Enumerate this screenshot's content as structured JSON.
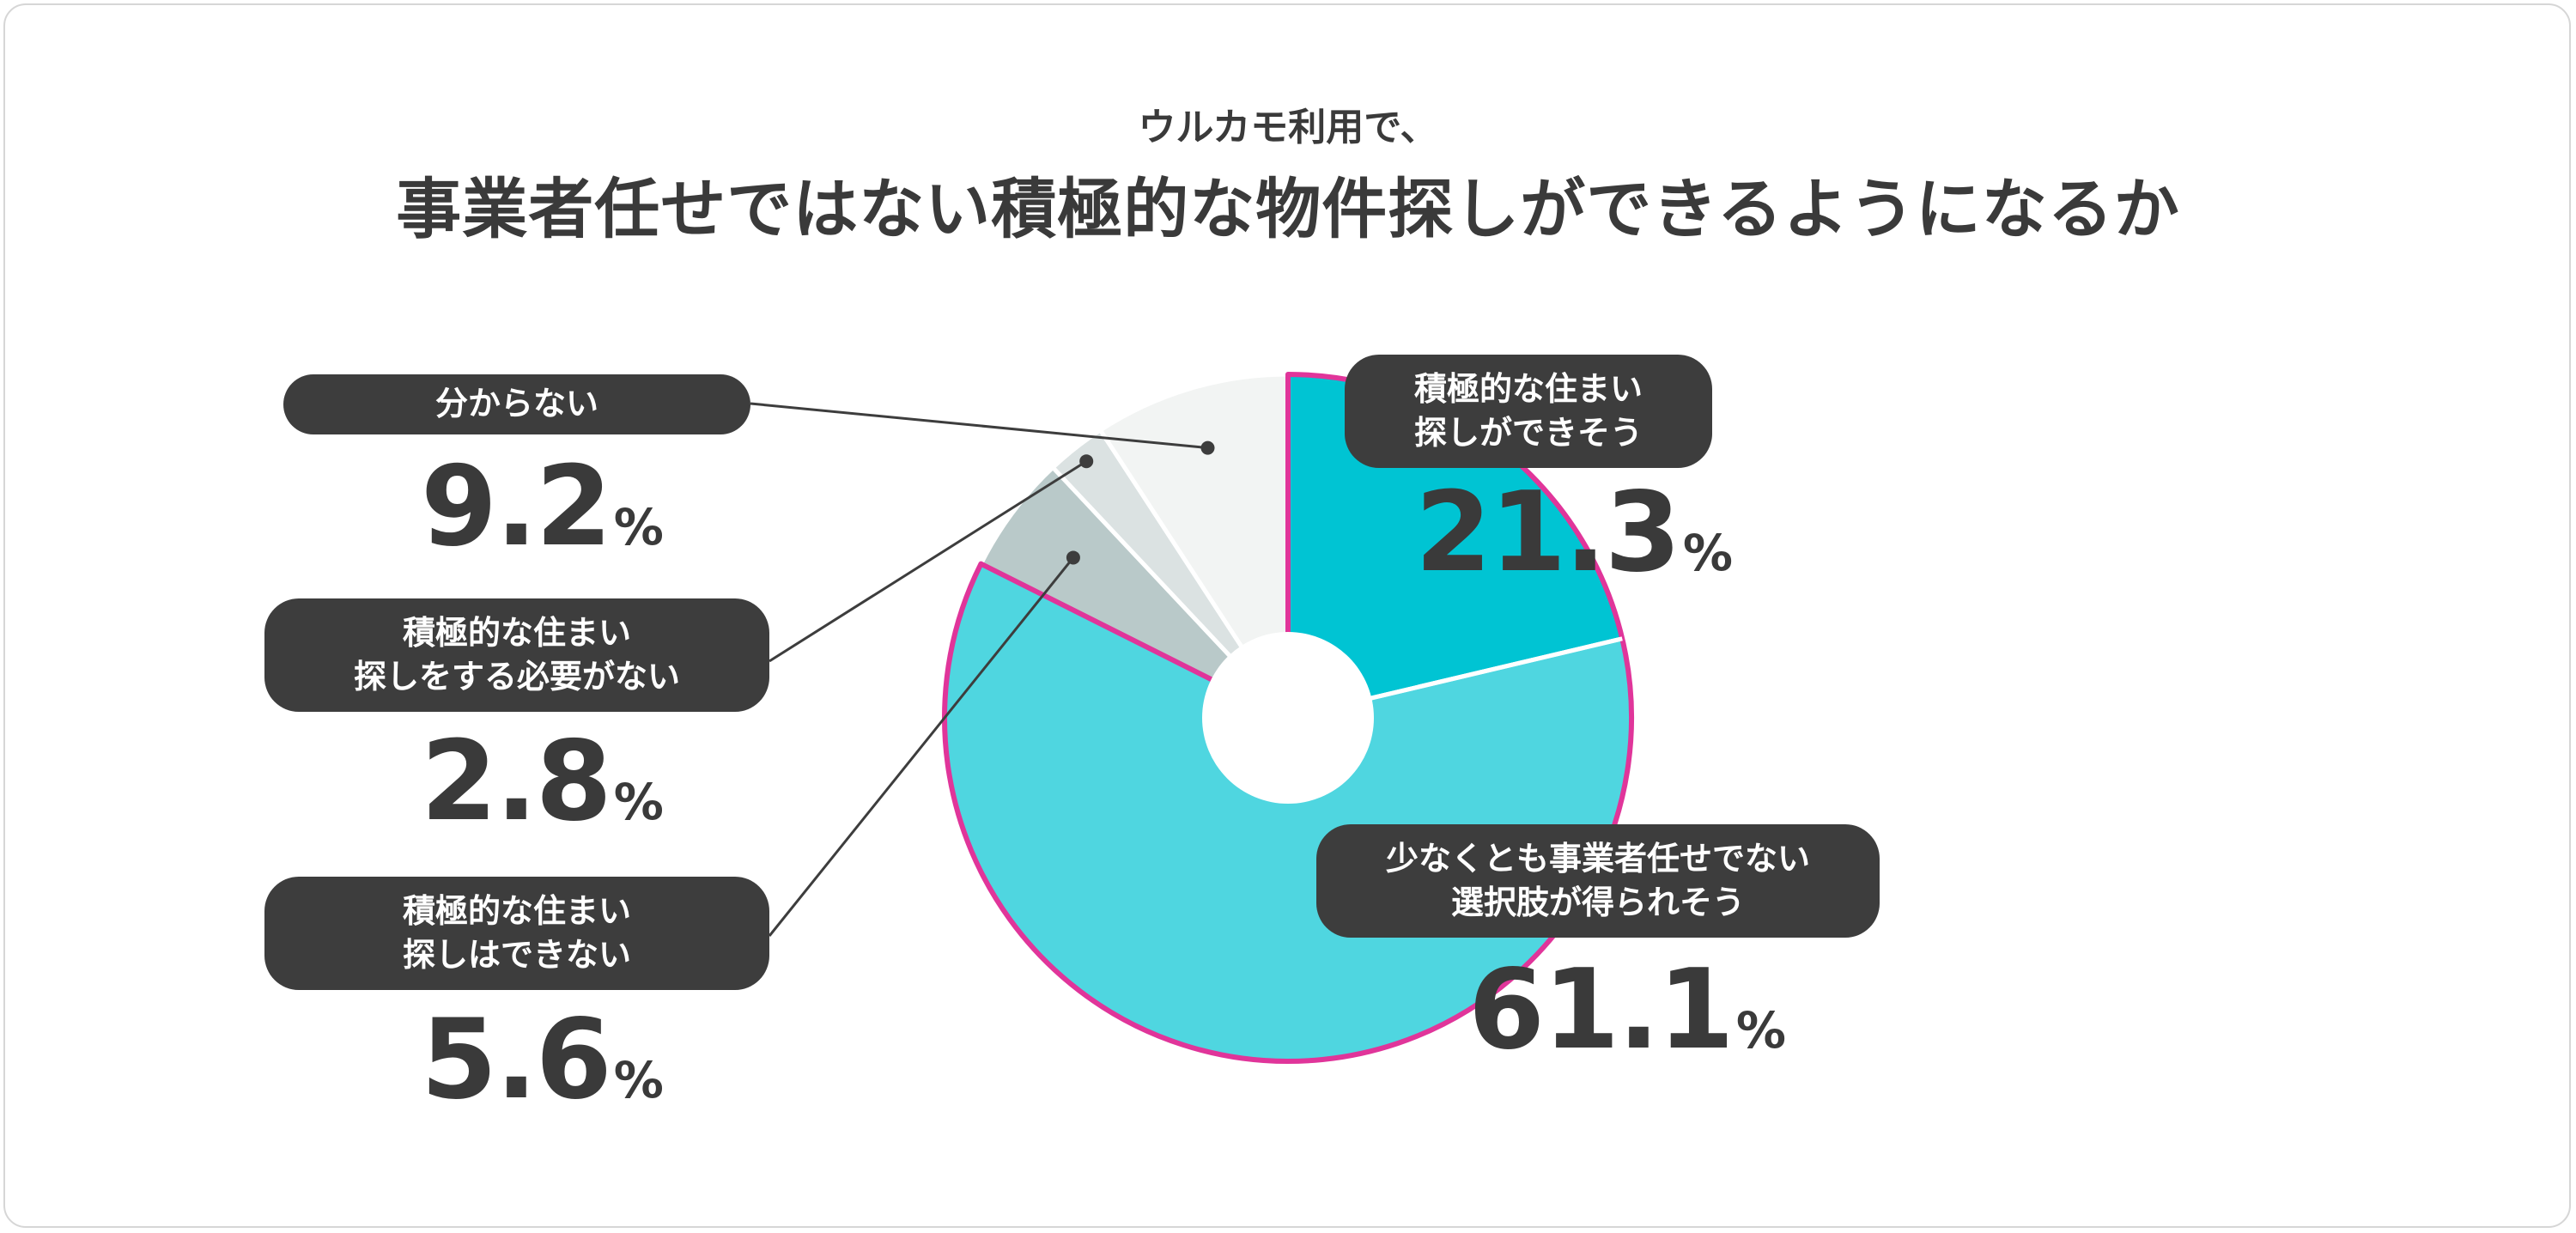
{
  "header": {
    "subtitle": "ウルカモ利用で、",
    "title": "事業者任せではない積極的な物件探しができるようになるか"
  },
  "chart_data": {
    "type": "pie",
    "style": "donut",
    "unit": "%",
    "title": "事業者任せではない積極的な物件探しができるようになるか",
    "subtitle": "ウルカモ利用で、",
    "slices": [
      {
        "label_lines": [
          "積極的な住まい",
          "探しができそう"
        ],
        "value": 21.3,
        "value_text": "21.3",
        "color": "#00c4d3",
        "highlight": true
      },
      {
        "label_lines": [
          "少なくとも事業者任せでない",
          "選択肢が得られそう"
        ],
        "value": 61.1,
        "value_text": "61.1",
        "color": "#4fd6e0",
        "highlight": true
      },
      {
        "label_lines": [
          "積極的な住まい",
          "探しはできない"
        ],
        "value": 5.6,
        "value_text": "5.6",
        "color": "#b9c9c9",
        "highlight": false
      },
      {
        "label_lines": [
          "積極的な住まい",
          "探しをする必要がない"
        ],
        "value": 2.8,
        "value_text": "2.8",
        "color": "#dbe2e2",
        "highlight": false
      },
      {
        "label_lines": [
          "分からない"
        ],
        "value": 9.2,
        "value_text": "9.2",
        "color": "#f2f4f3",
        "highlight": false
      }
    ],
    "highlight_color": "#e0359a",
    "hole_color": "#ffffff"
  }
}
